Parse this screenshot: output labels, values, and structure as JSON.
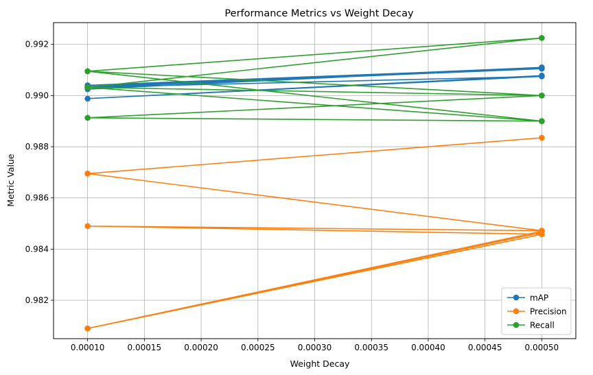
{
  "chart_data": {
    "type": "line",
    "title": "Performance Metrics vs Weight Decay",
    "xlabel": "Weight Decay",
    "ylabel": "Metric Value",
    "xlim": [
      7e-05,
      0.00053
    ],
    "ylim": [
      0.9805,
      0.99285
    ],
    "xticks": [
      "0.00010",
      "0.00015",
      "0.00020",
      "0.00025",
      "0.00030",
      "0.00035",
      "0.00040",
      "0.00045",
      "0.00050"
    ],
    "xtick_values": [
      0.0001,
      0.00015,
      0.0002,
      0.00025,
      0.0003,
      0.00035,
      0.0004,
      0.00045,
      0.0005
    ],
    "yticks": [
      "0.982",
      "0.984",
      "0.986",
      "0.988",
      "0.990",
      "0.992"
    ],
    "ytick_values": [
      0.982,
      0.984,
      0.986,
      0.988,
      0.99,
      0.992
    ],
    "grid": true,
    "legend_position": "lower-right",
    "series": [
      {
        "name": "mAP",
        "color": "#1f77b4",
        "x": [
          0.0001,
          0.0005,
          0.0001,
          0.0005,
          0.0001,
          0.0005,
          0.0001,
          0.0005,
          0.0001,
          0.0005
        ],
        "y": [
          0.99025,
          0.9911,
          0.99035,
          0.99108,
          0.9904,
          0.99105,
          0.99032,
          0.99075,
          0.98988,
          0.99078
        ]
      },
      {
        "name": "Precision",
        "color": "#ff7f0e",
        "x": [
          0.0001,
          0.0005,
          0.0001,
          0.0005,
          0.0001,
          0.0005,
          0.0001,
          0.0005,
          0.0001,
          0.0005
        ],
        "y": [
          0.98695,
          0.98835,
          0.98695,
          0.98472,
          0.9849,
          0.98458,
          0.9809,
          0.98465,
          0.9809,
          0.9847
        ]
      },
      {
        "name": "Recall",
        "color": "#2ca02c",
        "x": [
          0.0001,
          0.0005,
          0.0001,
          0.0005,
          0.0001,
          0.0005,
          0.0001,
          0.0005,
          0.0001,
          0.0005
        ],
        "y": [
          0.99032,
          0.99225,
          0.99095,
          0.989,
          0.99095,
          0.99,
          0.98913,
          0.989,
          0.99032,
          0.99
        ]
      }
    ]
  }
}
